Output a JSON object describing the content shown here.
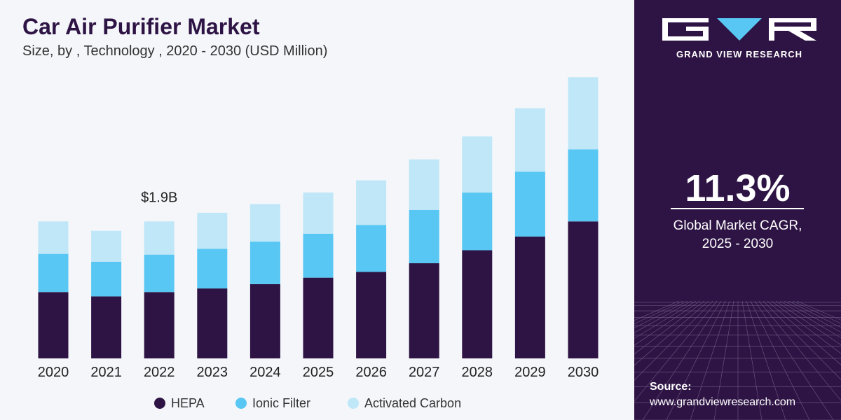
{
  "chart_data": {
    "type": "bar",
    "stacked": true,
    "title": "Car Air Purifier Market",
    "subtitle": "Size, by , Technology , 2020 - 2030 (USD Million)",
    "categories": [
      "2020",
      "2021",
      "2022",
      "2023",
      "2024",
      "2025",
      "2026",
      "2027",
      "2028",
      "2029",
      "2030"
    ],
    "series": [
      {
        "name": "HEPA",
        "color": "#2e1444",
        "values": [
          0.92,
          0.86,
          0.92,
          0.97,
          1.03,
          1.12,
          1.2,
          1.32,
          1.5,
          1.69,
          1.9
        ]
      },
      {
        "name": "Ionic Filter",
        "color": "#58c7f3",
        "values": [
          0.53,
          0.48,
          0.52,
          0.55,
          0.59,
          0.61,
          0.65,
          0.74,
          0.8,
          0.9,
          1.0
        ]
      },
      {
        "name": "Activated Carbon",
        "color": "#bfe7f8",
        "values": [
          0.45,
          0.43,
          0.46,
          0.5,
          0.52,
          0.57,
          0.62,
          0.7,
          0.78,
          0.88,
          1.0
        ]
      }
    ],
    "annotations": [
      {
        "category": "2022",
        "text": "$1.9B"
      }
    ],
    "ylim": [
      0,
      4.0
    ],
    "grid": false,
    "legend_position": "bottom"
  },
  "sidebar": {
    "logo_text": "GRAND VIEW RESEARCH",
    "cagr_value": "11.3%",
    "cagr_label_line1": "Global Market CAGR,",
    "cagr_label_line2": "2025 - 2030",
    "source_label": "Source:",
    "source_url": "www.grandviewresearch.com"
  }
}
